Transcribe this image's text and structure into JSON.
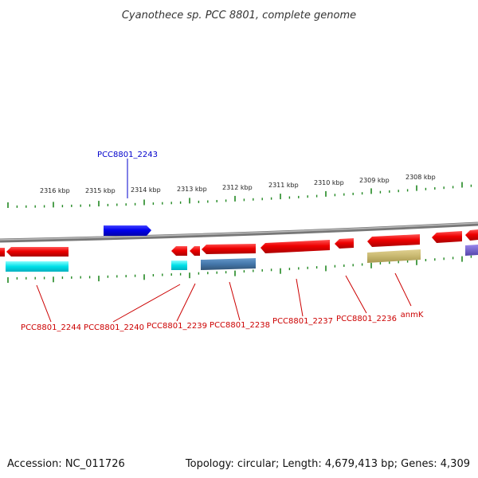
{
  "title": "Cyanothece sp. PCC 8801, complete genome",
  "footer": {
    "accession": "Accession: NC_011726",
    "summary": "Topology: circular; Length: 4,679,413 bp; Genes: 4,309"
  },
  "ruler": {
    "labels": [
      "2316 kbp",
      "2315 kbp",
      "2314 kbp",
      "2313 kbp",
      "2312 kbp",
      "2311 kbp",
      "2310 kbp",
      "2309 kbp",
      "2308 kbp"
    ]
  },
  "genes": [
    {
      "id": "PCC8801_2243",
      "label": "PCC8801_2243",
      "strand": "+",
      "color": "#0000ee",
      "label_color": "#0000cc"
    },
    {
      "id": "PCC8801_2244",
      "label": "PCC8801_2244",
      "strand": "-",
      "color": "#ee0000",
      "label_color": "#cc0000"
    },
    {
      "id": "PCC8801_2240",
      "label": "PCC8801_2240",
      "strand": "-",
      "color": "#ee0000",
      "label_color": "#cc0000"
    },
    {
      "id": "PCC8801_2239",
      "label": "PCC8801_2239",
      "strand": "-",
      "color": "#ee0000",
      "label_color": "#cc0000"
    },
    {
      "id": "PCC8801_2238",
      "label": "PCC8801_2238",
      "strand": "-",
      "color": "#ee0000",
      "label_color": "#cc0000"
    },
    {
      "id": "PCC8801_2237",
      "label": "PCC8801_2237",
      "strand": "-",
      "color": "#ee0000",
      "label_color": "#cc0000"
    },
    {
      "id": "PCC8801_2236",
      "label": "PCC8801_2236",
      "strand": "-",
      "color": "#ee0000",
      "label_color": "#cc0000"
    },
    {
      "id": "anmK",
      "label": "anmK",
      "strand": "-",
      "color": "#ee0000",
      "label_color": "#cc0000"
    }
  ],
  "colors": {
    "backbone": "#888888",
    "ticks": "#228822",
    "gene_minus": "#ee0000",
    "gene_plus": "#0000ee",
    "cog_cyan": "#00e0e8",
    "cog_steelblue": "#4477aa",
    "cog_khaki": "#c8b870",
    "cog_purple": "#7766cc"
  }
}
